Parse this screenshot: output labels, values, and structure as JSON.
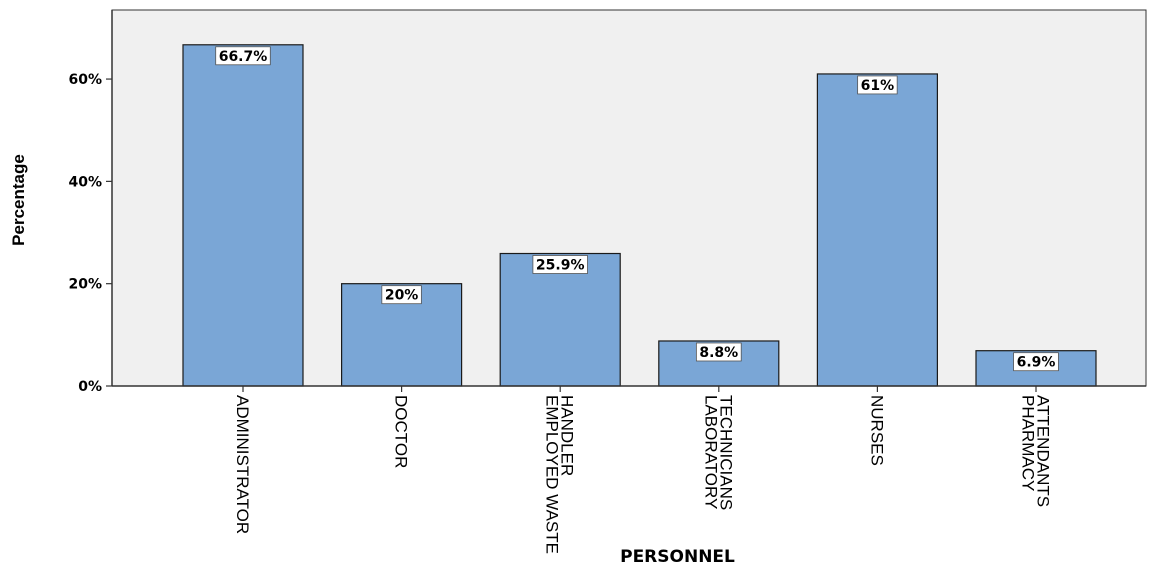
{
  "chart_data": {
    "type": "bar",
    "title": "",
    "xlabel": "PERSONNEL",
    "ylabel": "Percentage",
    "categories": [
      [
        "ADMINISTRATOR"
      ],
      [
        "DOCTOR"
      ],
      [
        "EMPLOYED WASTE",
        "HANDLER"
      ],
      [
        "LABORATORY",
        "TECHNICIANS"
      ],
      [
        "NURSES"
      ],
      [
        "PHARMACY",
        "ATTENDANTS"
      ]
    ],
    "values": [
      66.7,
      20,
      25.9,
      8.8,
      61,
      6.9
    ],
    "data_labels": [
      "66.7%",
      "20%",
      "25.9%",
      "8.8%",
      "61%",
      "6.9%"
    ],
    "yticks": [
      0,
      20,
      40,
      60
    ],
    "ytick_labels": [
      "0%",
      "20%",
      "40%",
      "60%"
    ],
    "ylim": [
      0,
      73.5
    ],
    "grid": false,
    "legend": false,
    "colors": {
      "bar_fill": "#7aa6d6",
      "bar_stroke": "#1a1a1a",
      "plot_background": "#f0f0f0",
      "axis": "#333333",
      "label_box_fill": "#ffffff"
    }
  }
}
